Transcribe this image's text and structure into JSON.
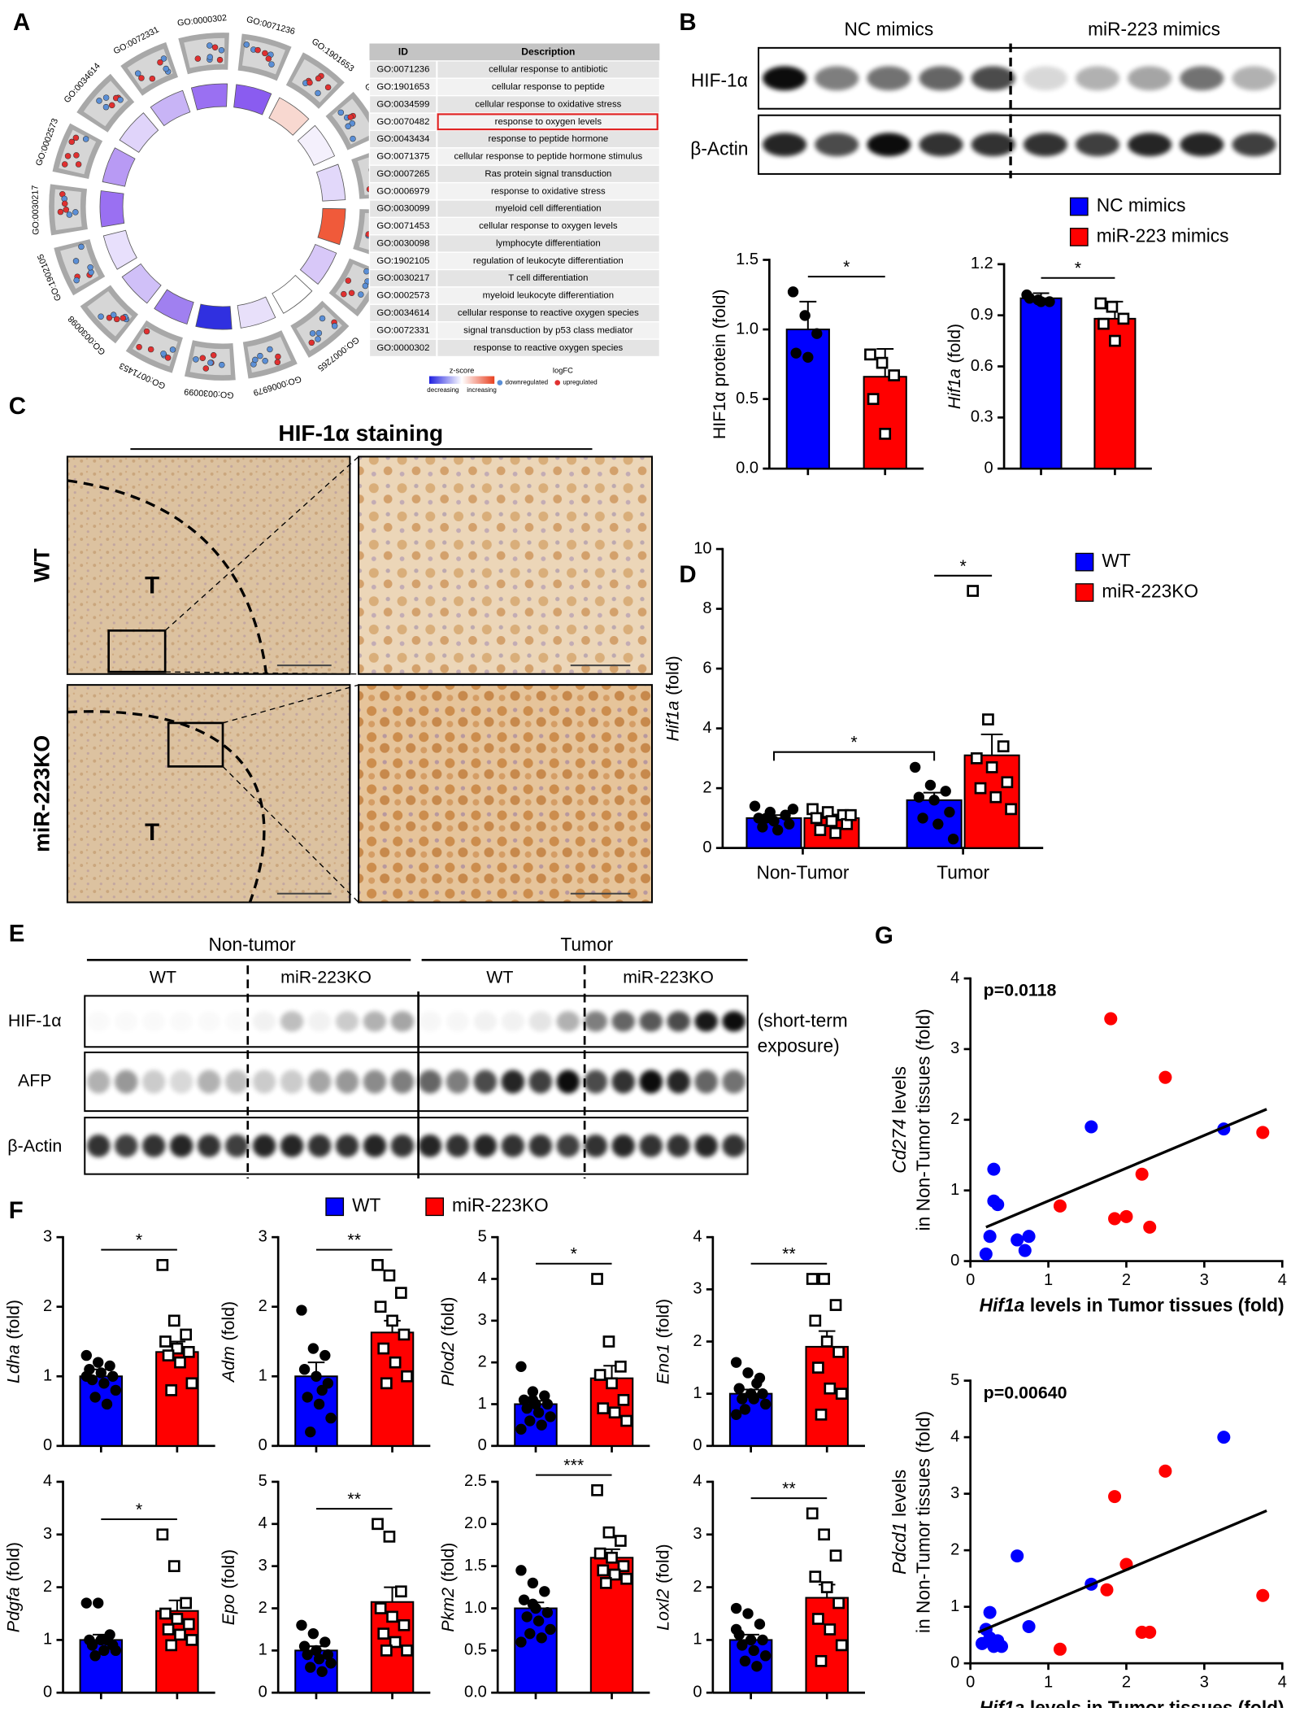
{
  "panel_labels": [
    "A",
    "B",
    "C",
    "D",
    "E",
    "F",
    "G"
  ],
  "go_table": {
    "headers": [
      "ID",
      "Description"
    ],
    "rows": [
      [
        "GO:0071236",
        "cellular response to antibiotic"
      ],
      [
        "GO:1901653",
        "cellular response to peptide"
      ],
      [
        "GO:0034599",
        "cellular response to oxidative stress"
      ],
      [
        "GO:0070482",
        "response to oxygen levels"
      ],
      [
        "GO:0043434",
        "response to peptide hormone"
      ],
      [
        "GO:0071375",
        "cellular response to peptide hormone stimulus"
      ],
      [
        "GO:0007265",
        "Ras protein signal transduction"
      ],
      [
        "GO:0006979",
        "response to oxidative stress"
      ],
      [
        "GO:0030099",
        "myeloid cell differentiation"
      ],
      [
        "GO:0071453",
        "cellular response to oxygen levels"
      ],
      [
        "GO:0030098",
        "lymphocyte differentiation"
      ],
      [
        "GO:1902105",
        "regulation of leukocyte differentiation"
      ],
      [
        "GO:0030217",
        "T cell differentiation"
      ],
      [
        "GO:0002573",
        "myeloid leukocyte differentiation"
      ],
      [
        "GO:0034614",
        "cellular response to reactive oxygen species"
      ],
      [
        "GO:0072331",
        "signal transduction by p53 class mediator"
      ],
      [
        "GO:0000302",
        "response to reactive oxygen species"
      ]
    ]
  },
  "go_legend": {
    "zscore_title": "z-score",
    "decreasing": "decreasing",
    "increasing": "increasing",
    "logfc_title": "logFC",
    "down": "downregulated",
    "up": "upregulated"
  },
  "blot_b": {
    "groups": [
      "NC mimics",
      "miR-223 mimics"
    ],
    "rows": [
      "HIF-1α",
      "β-Actin"
    ]
  },
  "staining": {
    "title": "HIF-1α staining",
    "rows": [
      "WT",
      "miR-223KO"
    ],
    "tumor_mark": "T"
  },
  "blot_e": {
    "groups": [
      "Non-tumor",
      "Tumor"
    ],
    "subgroups": [
      "WT",
      "miR-223KO",
      "WT",
      "miR-223KO"
    ],
    "rows": [
      "HIF-1α",
      "AFP",
      "β-Actin"
    ],
    "note": [
      "(short-term",
      "exposure)"
    ]
  },
  "chart_data": [
    {
      "type": "bar",
      "ylabel": "HIF1α protein (fold)",
      "ylim": [
        0,
        1.5
      ],
      "yticks": [
        {
          "value": 0,
          "label": "0.0"
        },
        0.5,
        {
          "value": 1,
          "label": "1.0"
        },
        1.5
      ],
      "significance": "*",
      "series": [
        {
          "name": "NC mimics",
          "color": "#0000ff",
          "marker": "circle",
          "values": [
            1.0
          ],
          "errors": [
            0.2
          ],
          "points": [
            [
              1.27,
              1.1,
              0.97,
              0.83,
              0.8
            ]
          ]
        },
        {
          "name": "miR-223 mimics",
          "color": "#ff0000",
          "marker": "square",
          "values": [
            0.66
          ],
          "errors": [
            0.2
          ],
          "points": [
            [
              0.82,
              0.76,
              0.67,
              0.5,
              0.25
            ]
          ]
        }
      ]
    },
    {
      "type": "bar",
      "ylabel_gene": "Hif1a",
      "ylabel": "(fold)",
      "ylim": [
        0,
        1.2
      ],
      "yticks": [
        0,
        0.3,
        0.6,
        0.9,
        1.2
      ],
      "significance": "*",
      "series": [
        {
          "color": "#0000ff",
          "marker": "circle",
          "values": [
            1.0
          ],
          "errors": [
            0.03
          ],
          "points": [
            [
              1.02,
              0.99,
              0.98,
              1.0,
              0.98
            ]
          ]
        },
        {
          "color": "#ff0000",
          "marker": "square",
          "values": [
            0.88
          ],
          "errors": [
            0.1
          ],
          "points": [
            [
              0.97,
              0.95,
              0.88,
              0.85,
              0.75
            ]
          ]
        }
      ]
    },
    {
      "type": "bar",
      "ylabel_gene": "Hif1a",
      "ylabel": "(fold)",
      "categories": [
        "Non-Tumor",
        "Tumor"
      ],
      "ylim": [
        0,
        10
      ],
      "yticks": [
        0,
        2,
        4,
        6,
        8,
        10
      ],
      "significance": [
        "*",
        "*"
      ],
      "series": [
        {
          "name": "WT",
          "color": "#0000ff",
          "marker": "circle",
          "values": [
            1.0,
            1.6
          ],
          "errors": [
            0.1,
            0.25
          ],
          "points": [
            [
              1.4,
              1.2,
              1.1,
              1.0,
              0.9,
              0.8,
              0.7,
              0.6,
              1.3,
              1.0
            ],
            [
              2.7,
              2.1,
              1.9,
              1.7,
              1.6,
              1.2,
              1.0,
              0.8,
              0.3
            ]
          ]
        },
        {
          "name": "miR-223KO",
          "color": "#ff0000",
          "marker": "square",
          "values": [
            1.0,
            3.1
          ],
          "errors": [
            0.12,
            0.7
          ],
          "points": [
            [
              1.3,
              1.2,
              1.1,
              1.0,
              0.9,
              0.8,
              0.6,
              0.5,
              1.1
            ],
            [
              8.6,
              4.3,
              3.4,
              3.0,
              2.7,
              2.2,
              2.0,
              1.7,
              1.3
            ]
          ]
        }
      ]
    },
    {
      "type": "bar",
      "ylabel_gene": "Ldha",
      "ylabel": "(fold)",
      "ylim": [
        0,
        3
      ],
      "yticks": [
        0,
        1,
        2,
        3
      ],
      "significance": "*",
      "series": [
        {
          "name": "WT",
          "color": "#0000ff",
          "marker": "circle",
          "values": [
            1.0
          ],
          "errors": [
            0.1
          ],
          "points": [
            [
              1.3,
              1.2,
              1.15,
              1.1,
              1.05,
              1.0,
              0.95,
              0.9,
              0.8,
              0.7,
              0.6,
              1.0
            ]
          ]
        },
        {
          "name": "miR-223KO",
          "color": "#ff0000",
          "marker": "square",
          "values": [
            1.35
          ],
          "errors": [
            0.15
          ],
          "points": [
            [
              2.6,
              1.8,
              1.6,
              1.5,
              1.4,
              1.35,
              1.3,
              1.2,
              0.9,
              0.8
            ]
          ]
        }
      ]
    },
    {
      "type": "bar",
      "ylabel_gene": "Adm",
      "ylabel": "(fold)",
      "ylim": [
        0,
        3
      ],
      "yticks": [
        0,
        1,
        2,
        3
      ],
      "significance": "**",
      "series": [
        {
          "color": "#0000ff",
          "marker": "circle",
          "values": [
            1.0
          ],
          "errors": [
            0.2
          ],
          "points": [
            [
              1.95,
              1.4,
              1.3,
              1.1,
              1.0,
              0.9,
              0.7,
              0.6,
              0.4,
              0.2,
              0.8
            ]
          ]
        },
        {
          "color": "#ff0000",
          "marker": "square",
          "values": [
            1.63
          ],
          "errors": [
            0.17
          ],
          "points": [
            [
              2.6,
              2.45,
              2.2,
              2.0,
              1.8,
              1.6,
              1.4,
              1.2,
              1.0,
              0.9
            ]
          ]
        }
      ]
    },
    {
      "type": "bar",
      "ylabel_gene": "Plod2",
      "ylabel": "(fold)",
      "ylim": [
        0,
        5
      ],
      "yticks": [
        0,
        1,
        2,
        3,
        4,
        5
      ],
      "significance": "*",
      "series": [
        {
          "color": "#0000ff",
          "marker": "circle",
          "values": [
            1.0
          ],
          "errors": [
            0.08
          ],
          "points": [
            [
              1.9,
              1.3,
              1.2,
              1.1,
              1.0,
              1.0,
              0.9,
              0.8,
              0.7,
              0.6,
              0.5,
              0.4,
              1.1
            ]
          ]
        },
        {
          "color": "#ff0000",
          "marker": "square",
          "values": [
            1.62
          ],
          "errors": [
            0.3
          ],
          "points": [
            [
              4.0,
              2.5,
              1.9,
              1.7,
              1.5,
              1.1,
              0.9,
              0.8,
              0.6
            ]
          ]
        }
      ]
    },
    {
      "type": "bar",
      "ylabel_gene": "Eno1",
      "ylabel": "(fold)",
      "ylim": [
        0,
        4
      ],
      "yticks": [
        0,
        1,
        2,
        3,
        4
      ],
      "significance": "**",
      "series": [
        {
          "color": "#0000ff",
          "marker": "circle",
          "values": [
            1.0
          ],
          "errors": [
            0.08
          ],
          "points": [
            [
              1.6,
              1.4,
              1.3,
              1.1,
              1.0,
              1.0,
              0.9,
              0.9,
              0.8,
              0.7,
              1.2,
              0.6
            ]
          ]
        },
        {
          "color": "#ff0000",
          "marker": "square",
          "values": [
            1.9
          ],
          "errors": [
            0.3
          ],
          "points": [
            [
              3.2,
              3.2,
              2.7,
              2.4,
              2.0,
              1.8,
              1.5,
              1.1,
              1.0,
              0.6
            ]
          ]
        }
      ]
    },
    {
      "type": "bar",
      "ylabel_gene": "Pdgfa",
      "ylabel": "(fold)",
      "ylim": [
        0,
        4
      ],
      "yticks": [
        0,
        1,
        2,
        3,
        4
      ],
      "significance": "*",
      "series": [
        {
          "color": "#0000ff",
          "marker": "circle",
          "values": [
            1.0
          ],
          "errors": [
            0.1
          ],
          "points": [
            [
              1.7,
              1.7,
              1.1,
              1.0,
              1.0,
              0.9,
              0.9,
              0.8,
              0.8,
              0.7,
              1.0
            ]
          ]
        },
        {
          "color": "#ff0000",
          "marker": "square",
          "values": [
            1.55
          ],
          "errors": [
            0.2
          ],
          "points": [
            [
              3.0,
              2.4,
              1.7,
              1.5,
              1.4,
              1.3,
              1.2,
              1.1,
              1.0,
              0.9
            ]
          ]
        }
      ]
    },
    {
      "type": "bar",
      "ylabel_gene": "Epo",
      "ylabel": "(fold)",
      "ylim": [
        0,
        5
      ],
      "yticks": [
        0,
        1,
        2,
        3,
        4,
        5
      ],
      "significance": "**",
      "series": [
        {
          "color": "#0000ff",
          "marker": "circle",
          "values": [
            1.0
          ],
          "errors": [
            0.1
          ],
          "points": [
            [
              1.6,
              1.4,
              1.2,
              1.1,
              1.0,
              0.9,
              0.9,
              0.8,
              0.7,
              0.6,
              0.5
            ]
          ]
        },
        {
          "color": "#ff0000",
          "marker": "square",
          "values": [
            2.15
          ],
          "errors": [
            0.35
          ],
          "points": [
            [
              4.0,
              3.7,
              2.4,
              2.0,
              1.8,
              1.6,
              1.4,
              1.2,
              1.0,
              1.0
            ]
          ]
        }
      ]
    },
    {
      "type": "bar",
      "ylabel_gene": "Pkm2",
      "ylabel": "(fold)",
      "ylim": [
        0,
        2.5
      ],
      "yticks": [
        {
          "value": 0,
          "label": "0.0"
        },
        0.5,
        {
          "value": 1,
          "label": "1.0"
        },
        1.5,
        {
          "value": 2,
          "label": "2.0"
        },
        2.5
      ],
      "significance": "***",
      "series": [
        {
          "color": "#0000ff",
          "marker": "circle",
          "values": [
            1.0
          ],
          "errors": [
            0.07
          ],
          "points": [
            [
              1.45,
              1.3,
              1.2,
              1.1,
              1.0,
              0.95,
              0.9,
              0.85,
              0.75,
              0.7,
              0.65,
              0.6,
              1.05
            ]
          ]
        },
        {
          "color": "#ff0000",
          "marker": "square",
          "values": [
            1.6
          ],
          "errors": [
            0.1
          ],
          "points": [
            [
              2.4,
              1.9,
              1.8,
              1.65,
              1.6,
              1.5,
              1.45,
              1.4,
              1.35,
              1.3
            ]
          ]
        }
      ]
    },
    {
      "type": "bar",
      "ylabel_gene": "Loxl2",
      "ylabel": "(fold)",
      "ylim": [
        0,
        4
      ],
      "yticks": [
        0,
        1,
        2,
        3,
        4
      ],
      "significance": "**",
      "series": [
        {
          "color": "#0000ff",
          "marker": "circle",
          "values": [
            1.0
          ],
          "errors": [
            0.1
          ],
          "points": [
            [
              1.6,
              1.5,
              1.3,
              1.1,
              1.0,
              1.0,
              0.9,
              0.8,
              0.7,
              0.6,
              0.5,
              1.2
            ]
          ]
        },
        {
          "color": "#ff0000",
          "marker": "square",
          "values": [
            1.8
          ],
          "errors": [
            0.25
          ],
          "points": [
            [
              3.4,
              3.0,
              2.6,
              2.2,
              2.0,
              1.7,
              1.4,
              1.2,
              0.9,
              0.6
            ]
          ]
        }
      ]
    },
    {
      "type": "scatter",
      "annotation": "p=0.0118",
      "ylabel_gene": "Cd274",
      "ylabel": "levels",
      "ylabel2": "in Non-Tumor tissues (fold)",
      "xlabel_gene": "Hif1a",
      "xlabel": "levels in Tumor tissues (fold)",
      "xlim": [
        0,
        4
      ],
      "ylim": [
        0,
        4
      ],
      "xticks": [
        0,
        1,
        2,
        3,
        4
      ],
      "yticks": [
        0,
        1,
        2,
        3,
        4
      ],
      "series": [
        {
          "color": "#0000ff",
          "x": [
            0.2,
            0.25,
            0.3,
            0.35,
            0.3,
            0.6,
            0.75,
            0.7,
            1.55,
            3.25
          ],
          "y": [
            0.1,
            0.35,
            0.85,
            0.8,
            1.3,
            0.3,
            0.35,
            0.15,
            1.9,
            1.87
          ]
        },
        {
          "color": "#ff0000",
          "x": [
            1.15,
            1.8,
            1.85,
            2.0,
            2.2,
            2.3,
            2.5,
            3.75
          ],
          "y": [
            0.78,
            3.43,
            0.6,
            0.63,
            1.23,
            0.48,
            2.6,
            1.82
          ]
        }
      ],
      "trend_line": {
        "x": [
          0.2,
          3.8
        ],
        "y": [
          0.48,
          2.15
        ]
      }
    },
    {
      "type": "scatter",
      "annotation": "p=0.00640",
      "ylabel_gene": "Pdcd1",
      "ylabel": "levels",
      "ylabel2": "in Non-Tumor tissues (fold)",
      "xlabel_gene": "Hif1a",
      "xlabel": "levels in Tumor tissues (fold)",
      "xlim": [
        0,
        4
      ],
      "ylim": [
        0,
        5
      ],
      "xticks": [
        0,
        1,
        2,
        3,
        4
      ],
      "yticks": [
        0,
        1,
        2,
        3,
        4,
        5
      ],
      "series": [
        {
          "color": "#0000ff",
          "x": [
            0.15,
            0.2,
            0.25,
            0.3,
            0.35,
            0.25,
            0.4,
            0.6,
            0.75,
            1.55,
            3.25
          ],
          "y": [
            0.35,
            0.6,
            0.45,
            0.3,
            0.4,
            0.9,
            0.3,
            1.9,
            0.65,
            1.4,
            4.0
          ]
        },
        {
          "color": "#ff0000",
          "x": [
            1.15,
            1.75,
            1.85,
            2.0,
            2.2,
            2.3,
            2.5,
            3.75
          ],
          "y": [
            0.25,
            1.3,
            2.95,
            1.75,
            0.55,
            0.55,
            3.4,
            1.2
          ]
        }
      ],
      "trend_line": {
        "x": [
          0.1,
          3.8
        ],
        "y": [
          0.55,
          2.7
        ]
      }
    }
  ]
}
